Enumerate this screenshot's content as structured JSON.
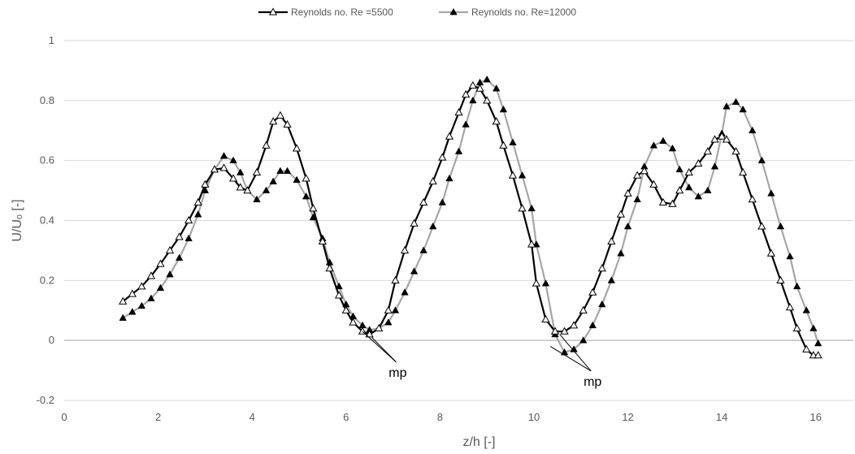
{
  "chart_data": {
    "type": "line",
    "xlabel": "z/h [-]",
    "ylabel": "U/Uₒ [-]",
    "xlim": [
      0,
      16.8
    ],
    "ylim": [
      -0.2,
      1
    ],
    "xticks": [
      "0",
      "2",
      "4",
      "6",
      "8",
      "10",
      "12",
      "14",
      "16"
    ],
    "yticks": [
      "-0.2",
      "0",
      "0.2",
      "0.4",
      "0.6",
      "0.8",
      "1"
    ],
    "grid": "horizontal",
    "legend_position": "top",
    "series": [
      {
        "name": "Reynolds no.   Re =5500",
        "color": "#000000",
        "marker": "open-triangle",
        "points": [
          [
            1.25,
            0.13
          ],
          [
            1.45,
            0.155
          ],
          [
            1.65,
            0.18
          ],
          [
            1.85,
            0.215
          ],
          [
            2.05,
            0.255
          ],
          [
            2.25,
            0.3
          ],
          [
            2.45,
            0.345
          ],
          [
            2.65,
            0.4
          ],
          [
            2.85,
            0.46
          ],
          [
            3.0,
            0.52
          ],
          [
            3.2,
            0.57
          ],
          [
            3.4,
            0.575
          ],
          [
            3.6,
            0.54
          ],
          [
            3.75,
            0.51
          ],
          [
            3.9,
            0.5
          ],
          [
            4.1,
            0.56
          ],
          [
            4.3,
            0.65
          ],
          [
            4.45,
            0.73
          ],
          [
            4.6,
            0.75
          ],
          [
            4.75,
            0.72
          ],
          [
            4.95,
            0.64
          ],
          [
            5.15,
            0.54
          ],
          [
            5.3,
            0.44
          ],
          [
            5.5,
            0.33
          ],
          [
            5.65,
            0.24
          ],
          [
            5.85,
            0.15
          ],
          [
            6.0,
            0.1
          ],
          [
            6.15,
            0.06
          ],
          [
            6.35,
            0.03
          ],
          [
            6.5,
            0.02
          ],
          [
            6.7,
            0.04
          ],
          [
            6.9,
            0.1
          ],
          [
            7.05,
            0.2
          ],
          [
            7.25,
            0.3
          ],
          [
            7.45,
            0.39
          ],
          [
            7.65,
            0.46
          ],
          [
            7.85,
            0.53
          ],
          [
            8.05,
            0.61
          ],
          [
            8.2,
            0.68
          ],
          [
            8.4,
            0.76
          ],
          [
            8.55,
            0.82
          ],
          [
            8.7,
            0.85
          ],
          [
            8.85,
            0.84
          ],
          [
            9.0,
            0.8
          ],
          [
            9.2,
            0.73
          ],
          [
            9.35,
            0.65
          ],
          [
            9.55,
            0.55
          ],
          [
            9.75,
            0.44
          ],
          [
            9.95,
            0.32
          ],
          [
            10.05,
            0.19
          ],
          [
            10.25,
            0.07
          ],
          [
            10.45,
            0.03
          ],
          [
            10.65,
            0.03
          ],
          [
            10.85,
            0.05
          ],
          [
            11.05,
            0.1
          ],
          [
            11.25,
            0.16
          ],
          [
            11.45,
            0.24
          ],
          [
            11.65,
            0.33
          ],
          [
            11.85,
            0.42
          ],
          [
            12.0,
            0.49
          ],
          [
            12.2,
            0.55
          ],
          [
            12.35,
            0.565
          ],
          [
            12.55,
            0.52
          ],
          [
            12.75,
            0.46
          ],
          [
            12.95,
            0.455
          ],
          [
            13.1,
            0.5
          ],
          [
            13.3,
            0.56
          ],
          [
            13.5,
            0.59
          ],
          [
            13.7,
            0.63
          ],
          [
            13.85,
            0.67
          ],
          [
            14.0,
            0.68
          ],
          [
            14.1,
            0.67
          ],
          [
            14.3,
            0.63
          ],
          [
            14.45,
            0.56
          ],
          [
            14.65,
            0.47
          ],
          [
            14.85,
            0.38
          ],
          [
            15.05,
            0.29
          ],
          [
            15.25,
            0.2
          ],
          [
            15.45,
            0.11
          ],
          [
            15.6,
            0.04
          ],
          [
            15.8,
            -0.03
          ],
          [
            15.95,
            -0.05
          ],
          [
            16.05,
            -0.05
          ]
        ]
      },
      {
        "name": "Reynolds no.   Re=12000",
        "color": "#a6a6a6",
        "marker": "filled-triangle",
        "points": [
          [
            1.25,
            0.075
          ],
          [
            1.45,
            0.095
          ],
          [
            1.65,
            0.115
          ],
          [
            1.85,
            0.14
          ],
          [
            2.05,
            0.175
          ],
          [
            2.25,
            0.22
          ],
          [
            2.45,
            0.275
          ],
          [
            2.65,
            0.34
          ],
          [
            2.85,
            0.42
          ],
          [
            3.0,
            0.5
          ],
          [
            3.2,
            0.57
          ],
          [
            3.4,
            0.615
          ],
          [
            3.6,
            0.6
          ],
          [
            3.75,
            0.56
          ],
          [
            3.9,
            0.5
          ],
          [
            4.1,
            0.47
          ],
          [
            4.3,
            0.5
          ],
          [
            4.45,
            0.53
          ],
          [
            4.6,
            0.565
          ],
          [
            4.75,
            0.565
          ],
          [
            4.95,
            0.535
          ],
          [
            5.15,
            0.48
          ],
          [
            5.3,
            0.41
          ],
          [
            5.5,
            0.34
          ],
          [
            5.65,
            0.26
          ],
          [
            5.85,
            0.18
          ],
          [
            6.0,
            0.12
          ],
          [
            6.15,
            0.08
          ],
          [
            6.35,
            0.05
          ],
          [
            6.5,
            0.035
          ],
          [
            6.7,
            0.04
          ],
          [
            6.9,
            0.06
          ],
          [
            7.05,
            0.1
          ],
          [
            7.25,
            0.16
          ],
          [
            7.45,
            0.23
          ],
          [
            7.65,
            0.3
          ],
          [
            7.85,
            0.38
          ],
          [
            8.05,
            0.46
          ],
          [
            8.2,
            0.54
          ],
          [
            8.4,
            0.63
          ],
          [
            8.55,
            0.72
          ],
          [
            8.7,
            0.8
          ],
          [
            8.85,
            0.86
          ],
          [
            9.0,
            0.87
          ],
          [
            9.2,
            0.84
          ],
          [
            9.35,
            0.77
          ],
          [
            9.55,
            0.66
          ],
          [
            9.75,
            0.55
          ],
          [
            9.95,
            0.44
          ],
          [
            10.05,
            0.32
          ],
          [
            10.25,
            0.19
          ],
          [
            10.45,
            0.02
          ],
          [
            10.65,
            -0.04
          ],
          [
            10.85,
            -0.03
          ],
          [
            11.05,
            0.0
          ],
          [
            11.25,
            0.05
          ],
          [
            11.45,
            0.12
          ],
          [
            11.65,
            0.2
          ],
          [
            11.85,
            0.29
          ],
          [
            12.0,
            0.38
          ],
          [
            12.2,
            0.47
          ],
          [
            12.35,
            0.58
          ],
          [
            12.55,
            0.65
          ],
          [
            12.75,
            0.665
          ],
          [
            12.95,
            0.64
          ],
          [
            13.1,
            0.57
          ],
          [
            13.3,
            0.51
          ],
          [
            13.5,
            0.48
          ],
          [
            13.7,
            0.5
          ],
          [
            13.85,
            0.58
          ],
          [
            14.0,
            0.69
          ],
          [
            14.1,
            0.78
          ],
          [
            14.3,
            0.795
          ],
          [
            14.45,
            0.77
          ],
          [
            14.65,
            0.7
          ],
          [
            14.85,
            0.6
          ],
          [
            15.05,
            0.49
          ],
          [
            15.25,
            0.38
          ],
          [
            15.45,
            0.28
          ],
          [
            15.6,
            0.18
          ],
          [
            15.8,
            0.1
          ],
          [
            15.95,
            0.04
          ],
          [
            16.05,
            -0.01
          ]
        ]
      }
    ],
    "annotations": [
      {
        "text": "mp",
        "x": 7.1,
        "y": -0.11,
        "arrows_to": [
          [
            6.55,
            0.01
          ],
          [
            6.35,
            0.03
          ]
        ]
      },
      {
        "text": "mp",
        "x": 11.25,
        "y": -0.14,
        "arrows_to": [
          [
            10.55,
            0.02
          ],
          [
            10.35,
            -0.02
          ]
        ]
      }
    ]
  }
}
